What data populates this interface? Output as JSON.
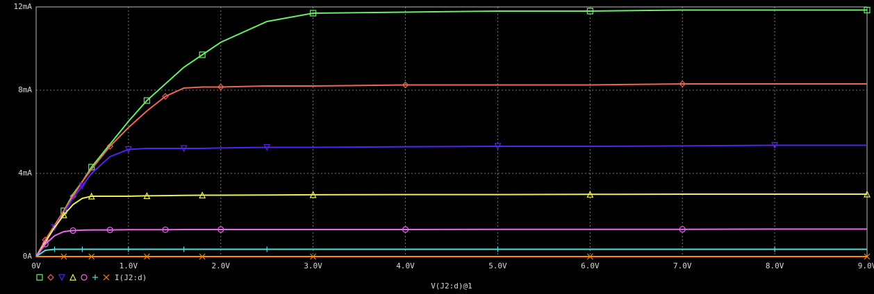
{
  "chart_data": {
    "type": "line",
    "x_label": "V(J2:d)@1",
    "legend_label": "I(J2:d)",
    "x": [
      0,
      0.1,
      0.2,
      0.3,
      0.4,
      0.5,
      0.6,
      0.8,
      1.0,
      1.2,
      1.4,
      1.6,
      1.8,
      2.0,
      2.5,
      3.0,
      4,
      5,
      6,
      7,
      8,
      9
    ],
    "series": [
      {
        "color": "#66ee66",
        "marker": "square",
        "values": [
          0,
          0.8,
          1.5,
          2.2,
          3.0,
          3.6,
          4.3,
          5.4,
          6.5,
          7.5,
          8.3,
          9.1,
          9.7,
          10.3,
          11.3,
          11.7,
          11.75,
          11.8,
          11.8,
          11.85,
          11.85,
          11.85
        ]
      },
      {
        "color": "#ee6655",
        "marker": "diamond",
        "values": [
          0,
          0.8,
          1.5,
          2.2,
          2.9,
          3.6,
          4.2,
          5.3,
          6.2,
          7.0,
          7.7,
          8.1,
          8.15,
          8.15,
          8.2,
          8.2,
          8.25,
          8.25,
          8.25,
          8.3,
          8.3,
          8.3
        ]
      },
      {
        "color": "#5522ee",
        "marker": "triangle-down",
        "values": [
          0,
          0.7,
          1.4,
          2.1,
          2.8,
          3.4,
          4.0,
          4.8,
          5.15,
          5.2,
          5.2,
          5.2,
          5.2,
          5.22,
          5.25,
          5.25,
          5.28,
          5.3,
          5.3,
          5.32,
          5.35,
          5.35
        ]
      },
      {
        "color": "#eeee55",
        "marker": "triangle-up",
        "values": [
          0,
          0.7,
          1.4,
          2.0,
          2.5,
          2.8,
          2.9,
          2.9,
          2.9,
          2.92,
          2.93,
          2.94,
          2.95,
          2.95,
          2.96,
          2.97,
          2.98,
          2.98,
          2.99,
          3.0,
          3.0,
          3.0
        ]
      },
      {
        "color": "#ee66ee",
        "marker": "circle",
        "values": [
          0,
          0.6,
          1.0,
          1.2,
          1.25,
          1.27,
          1.28,
          1.28,
          1.29,
          1.29,
          1.29,
          1.3,
          1.3,
          1.3,
          1.3,
          1.3,
          1.3,
          1.31,
          1.31,
          1.31,
          1.32,
          1.32
        ]
      },
      {
        "color": "#55dddd",
        "marker": "plus",
        "values": [
          0,
          0.3,
          0.35,
          0.35,
          0.35,
          0.35,
          0.35,
          0.35,
          0.35,
          0.35,
          0.35,
          0.35,
          0.35,
          0.35,
          0.35,
          0.35,
          0.35,
          0.35,
          0.35,
          0.35,
          0.35,
          0.35
        ]
      },
      {
        "color": "#ff8800",
        "marker": "cross",
        "values": [
          0,
          0,
          0,
          0,
          0,
          0,
          0,
          0,
          0,
          0,
          0,
          0,
          0,
          0,
          0,
          0,
          0,
          0,
          0,
          0,
          0,
          0
        ]
      }
    ],
    "xlim": [
      0,
      9
    ],
    "xticks": [
      {
        "value": 0,
        "label": "0V"
      },
      {
        "value": 1,
        "label": "1.0V"
      },
      {
        "value": 2,
        "label": "2.0V"
      },
      {
        "value": 3,
        "label": "3.0V"
      },
      {
        "value": 4,
        "label": "4.0V"
      },
      {
        "value": 5,
        "label": "5.0V"
      },
      {
        "value": 6,
        "label": "6.0V"
      },
      {
        "value": 7,
        "label": "7.0V"
      },
      {
        "value": 8,
        "label": "8.0V"
      },
      {
        "value": 9,
        "label": "9.0V"
      }
    ],
    "ylim": [
      0,
      12
    ],
    "yticks": [
      {
        "value": 0,
        "label": "0A"
      },
      {
        "value": 4,
        "label": "4mA"
      },
      {
        "value": 8,
        "label": "8mA"
      },
      {
        "value": 12,
        "label": "12mA"
      }
    ],
    "grid": true
  }
}
